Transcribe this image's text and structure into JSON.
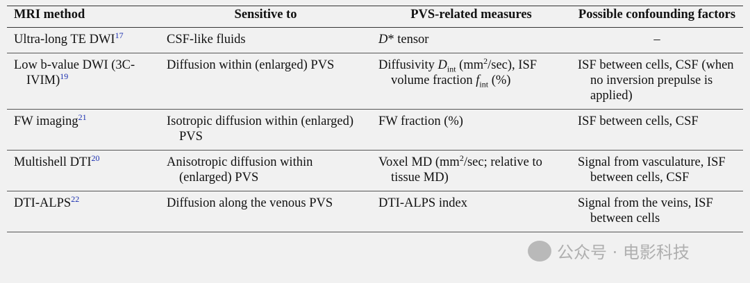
{
  "table": {
    "header": [
      "MRI method",
      "Sensitive to",
      "PVS-related measures",
      "Possible confounding factors"
    ],
    "rows": [
      [
        [
          "Ultra-long TE DWI",
          {
            "text": "17",
            "style": "sup-link"
          }
        ],
        [
          "CSF-like fluids"
        ],
        [
          {
            "text": "D",
            "style": "italic"
          },
          "* tensor"
        ],
        [
          {
            "text": "–",
            "style": "center"
          }
        ]
      ],
      [
        [
          "Low b-value DWI (3C-IVIM)",
          {
            "text": "19",
            "style": "sup-link"
          }
        ],
        [
          "Diffusion within (enlarged) PVS"
        ],
        [
          "Diffusivity ",
          {
            "text": "D",
            "style": "italic"
          },
          {
            "text": "int",
            "style": "sub"
          },
          " (mm",
          {
            "text": "2",
            "style": "sup"
          },
          "/sec), ISF volume fraction ",
          {
            "text": "f",
            "style": "italic"
          },
          {
            "text": "int",
            "style": "sub"
          },
          " (%)"
        ],
        [
          "ISF between cells, CSF (when no inversion prepulse is applied)"
        ]
      ],
      [
        [
          "FW imaging",
          {
            "text": "21",
            "style": "sup-link"
          }
        ],
        [
          "Isotropic diffusion within (enlarged) PVS"
        ],
        [
          "FW fraction (%)"
        ],
        [
          "ISF between cells, CSF"
        ]
      ],
      [
        [
          "Multishell DTI",
          {
            "text": "20",
            "style": "sup-link"
          }
        ],
        [
          "Anisotropic diffusion within (enlarged) PVS"
        ],
        [
          "Voxel MD (mm",
          {
            "text": "2",
            "style": "sup"
          },
          "/sec; relative to tissue MD)"
        ],
        [
          "Signal from vasculature, ISF between cells, CSF"
        ]
      ],
      [
        [
          "DTI-ALPS",
          {
            "text": "22",
            "style": "sup-link"
          }
        ],
        [
          "Diffusion along the venous PVS"
        ],
        [
          "DTI-ALPS index"
        ],
        [
          "Signal from the veins, ISF between cells"
        ]
      ]
    ]
  },
  "watermark": "公众号 · 电影科技"
}
